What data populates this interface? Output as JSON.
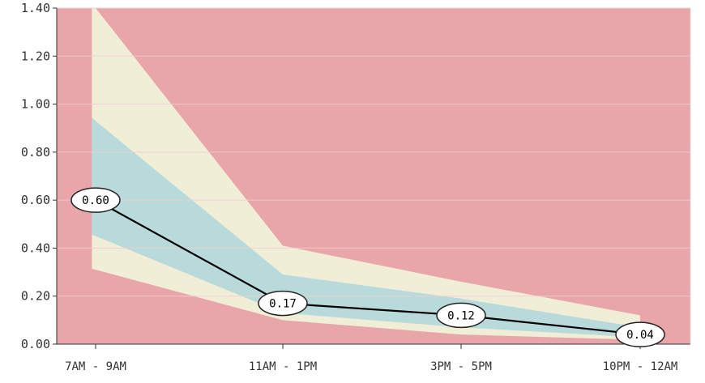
{
  "chart_data": {
    "type": "line",
    "title": "",
    "xlabel": "",
    "ylabel": "",
    "categories": [
      "7AM - 9AM",
      "11AM - 1PM",
      "3PM - 5PM",
      "10PM - 12AM"
    ],
    "ylim": [
      0,
      1.4
    ],
    "yticks": [
      0,
      0.2,
      0.4,
      0.6,
      0.8,
      1.0,
      1.2,
      1.4
    ],
    "ytick_labels": [
      "0.00",
      "0.20",
      "0.40",
      "0.60",
      "0.80",
      "1.00",
      "1.20",
      "1.40"
    ],
    "grid": true,
    "legend": "none",
    "series": [
      {
        "values": [
          0.6,
          0.17,
          0.12,
          0.04
        ],
        "data_labels": [
          "0.60",
          "0.17",
          "0.12",
          "0.04"
        ],
        "color": "#000000"
      }
    ],
    "bands": [
      {
        "id": "outer",
        "color": "#f1eed8",
        "x": [
          0,
          1,
          2,
          3
        ],
        "x_span": [
          -0.02,
          3.0
        ],
        "lower": [
          0.31,
          0.1,
          0.04,
          0.018
        ],
        "upper": [
          1.4,
          0.41,
          0.26,
          0.12
        ]
      },
      {
        "id": "inner",
        "color": "#b9dadb",
        "x": [
          0,
          1,
          2,
          3
        ],
        "x_span": [
          -0.02,
          3.0
        ],
        "lower": [
          0.45,
          0.13,
          0.07,
          0.028
        ],
        "upper": [
          0.93,
          0.29,
          0.19,
          0.07
        ]
      }
    ],
    "colors": {
      "background": "#e8a5aa",
      "grid": "#f1cdd0",
      "axis": "#333333",
      "tick_text": "#333333",
      "label_fill": "#ffffff",
      "label_stroke": "#222222"
    }
  }
}
